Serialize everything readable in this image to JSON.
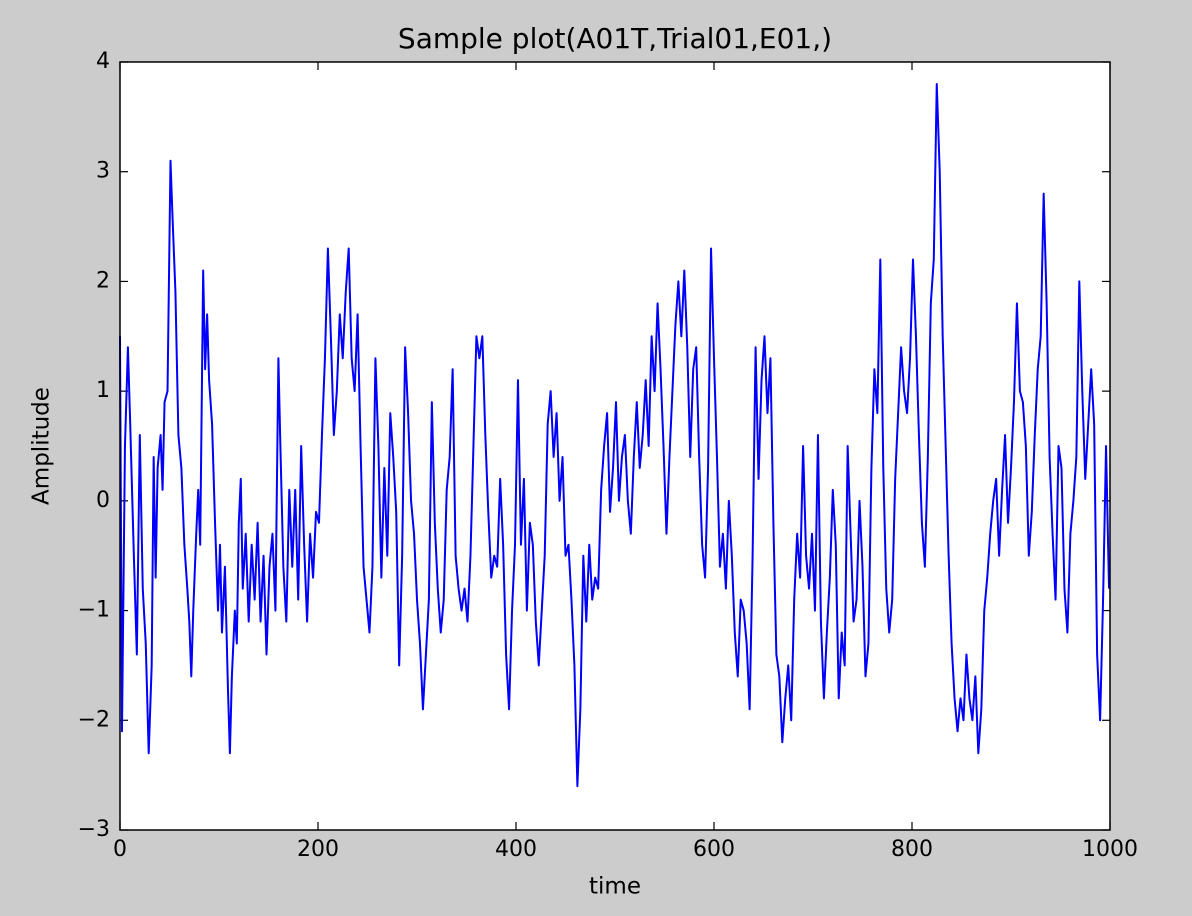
{
  "chart_data": {
    "type": "line",
    "title": "Sample plot(A01T,Trial01,E01,)",
    "x_label": "time",
    "y_label": "Amplitude",
    "xlim": [
      0,
      1000
    ],
    "ylim": [
      -3,
      4
    ],
    "xticks": [
      0,
      200,
      400,
      600,
      800,
      1000
    ],
    "yticks": [
      {
        "value": -3,
        "label": "−3"
      },
      {
        "value": -2,
        "label": "−2"
      },
      {
        "value": -1,
        "label": "−1"
      },
      0,
      1,
      2,
      3,
      4
    ],
    "grid": false,
    "x": [
      0,
      2,
      5,
      8,
      10,
      14,
      17,
      20,
      23,
      26,
      29,
      32,
      34,
      36,
      38,
      41,
      43,
      45,
      48,
      51,
      53,
      56,
      59,
      62,
      65,
      68,
      70,
      72,
      74,
      77,
      79,
      81,
      84,
      86,
      88,
      90,
      93,
      96,
      99,
      101,
      103,
      106,
      109,
      111,
      113,
      116,
      118,
      120,
      122,
      124,
      127,
      130,
      133,
      136,
      139,
      142,
      145,
      148,
      151,
      154,
      157,
      160,
      162,
      165,
      168,
      171,
      174,
      177,
      180,
      183,
      186,
      189,
      192,
      195,
      198,
      201,
      204,
      207,
      210,
      213,
      216,
      219,
      222,
      225,
      228,
      231,
      234,
      237,
      240,
      243,
      246,
      249,
      252,
      255,
      258,
      261,
      264,
      267,
      270,
      273,
      276,
      279,
      282,
      285,
      288,
      291,
      294,
      297,
      300,
      303,
      306,
      309,
      312,
      315,
      318,
      321,
      324,
      327,
      330,
      333,
      336,
      339,
      342,
      345,
      348,
      351,
      354,
      357,
      360,
      363,
      366,
      369,
      372,
      375,
      378,
      381,
      384,
      387,
      390,
      393,
      396,
      399,
      402,
      405,
      408,
      411,
      414,
      417,
      420,
      423,
      426,
      429,
      432,
      435,
      438,
      441,
      444,
      447,
      450,
      453,
      456,
      459,
      462,
      465,
      468,
      471,
      474,
      477,
      480,
      483,
      486,
      489,
      492,
      495,
      498,
      501,
      504,
      507,
      510,
      513,
      516,
      519,
      522,
      525,
      528,
      531,
      534,
      537,
      540,
      543,
      546,
      549,
      552,
      555,
      558,
      561,
      564,
      567,
      570,
      573,
      576,
      579,
      582,
      585,
      588,
      591,
      594,
      597,
      600,
      603,
      606,
      609,
      612,
      615,
      618,
      621,
      624,
      627,
      630,
      633,
      636,
      639,
      642,
      645,
      648,
      651,
      654,
      657,
      660,
      663,
      666,
      669,
      672,
      675,
      678,
      681,
      684,
      687,
      690,
      693,
      696,
      699,
      702,
      705,
      708,
      711,
      714,
      717,
      720,
      723,
      726,
      729,
      732,
      735,
      738,
      741,
      744,
      747,
      750,
      753,
      756,
      759,
      762,
      765,
      768,
      771,
      774,
      777,
      780,
      783,
      786,
      789,
      792,
      795,
      798,
      801,
      804,
      807,
      810,
      813,
      816,
      819,
      822,
      825,
      828,
      831,
      834,
      837,
      840,
      843,
      846,
      849,
      852,
      855,
      858,
      861,
      864,
      867,
      870,
      873,
      876,
      879,
      882,
      885,
      888,
      891,
      894,
      897,
      900,
      903,
      906,
      909,
      912,
      915,
      918,
      921,
      924,
      927,
      930,
      933,
      936,
      939,
      942,
      945,
      948,
      951,
      954,
      957,
      960,
      963,
      966,
      969,
      972,
      975,
      978,
      981,
      984,
      987,
      990,
      993,
      996,
      999
    ],
    "series": [
      {
        "color": "#0000ff",
        "values": [
          1.5,
          -2.1,
          0.5,
          1.4,
          0.8,
          -0.5,
          -1.4,
          0.6,
          -0.8,
          -1.3,
          -2.3,
          -1.5,
          0.4,
          -0.7,
          0.3,
          0.6,
          0.1,
          0.9,
          1.0,
          3.1,
          2.6,
          1.9,
          0.6,
          0.3,
          -0.4,
          -0.8,
          -1.1,
          -1.6,
          -1.0,
          -0.3,
          0.1,
          -0.4,
          2.1,
          1.2,
          1.7,
          1.1,
          0.7,
          -0.2,
          -1.0,
          -0.4,
          -1.2,
          -0.6,
          -1.7,
          -2.3,
          -1.6,
          -1.0,
          -1.3,
          -0.2,
          0.2,
          -0.8,
          -0.3,
          -1.1,
          -0.4,
          -0.9,
          -0.2,
          -1.1,
          -0.5,
          -1.4,
          -0.6,
          -0.3,
          -1.0,
          1.3,
          0.5,
          -0.6,
          -1.1,
          0.1,
          -0.6,
          0.1,
          -0.9,
          0.5,
          -0.4,
          -1.1,
          -0.3,
          -0.7,
          -0.1,
          -0.2,
          0.6,
          1.3,
          2.3,
          1.5,
          0.6,
          1.0,
          1.7,
          1.3,
          1.9,
          2.3,
          1.3,
          1.0,
          1.7,
          0.5,
          -0.6,
          -0.9,
          -1.2,
          -0.6,
          1.3,
          0.5,
          -0.7,
          0.3,
          -0.5,
          0.8,
          0.4,
          -0.1,
          -1.5,
          -0.5,
          1.4,
          0.8,
          0.0,
          -0.3,
          -0.9,
          -1.3,
          -1.9,
          -1.4,
          -0.9,
          0.9,
          -0.2,
          -0.8,
          -1.2,
          -0.9,
          0.1,
          0.4,
          1.2,
          -0.5,
          -0.8,
          -1.0,
          -0.8,
          -1.1,
          -0.5,
          0.5,
          1.5,
          1.3,
          1.5,
          0.6,
          -0.1,
          -0.7,
          -0.5,
          -0.6,
          0.2,
          -0.4,
          -1.4,
          -1.9,
          -1.0,
          -0.4,
          1.1,
          -0.4,
          0.2,
          -1.0,
          -0.2,
          -0.4,
          -1.1,
          -1.5,
          -1.0,
          -0.5,
          0.7,
          1.0,
          0.4,
          0.8,
          0.0,
          0.4,
          -0.5,
          -0.4,
          -0.9,
          -1.5,
          -2.6,
          -1.9,
          -0.5,
          -1.1,
          -0.4,
          -0.9,
          -0.7,
          -0.8,
          0.1,
          0.5,
          0.8,
          -0.1,
          0.3,
          0.9,
          0.0,
          0.4,
          0.6,
          0.0,
          -0.3,
          0.4,
          0.9,
          0.3,
          0.6,
          1.1,
          0.5,
          1.5,
          1.0,
          1.8,
          1.2,
          0.5,
          -0.3,
          0.4,
          1.0,
          1.6,
          2.0,
          1.5,
          2.1,
          1.4,
          0.4,
          1.2,
          1.4,
          0.4,
          -0.4,
          -0.7,
          0.3,
          2.3,
          1.3,
          0.4,
          -0.6,
          -0.3,
          -0.8,
          0.0,
          -0.5,
          -1.2,
          -1.6,
          -0.9,
          -1.0,
          -1.3,
          -1.9,
          -0.5,
          1.4,
          0.2,
          1.1,
          1.5,
          0.8,
          1.3,
          -0.2,
          -1.4,
          -1.6,
          -2.2,
          -1.8,
          -1.5,
          -2.0,
          -0.9,
          -0.3,
          -0.7,
          0.5,
          -0.5,
          -0.8,
          -0.3,
          -1.0,
          0.6,
          -1.1,
          -1.8,
          -1.2,
          -0.7,
          0.1,
          -0.4,
          -1.8,
          -1.2,
          -1.5,
          0.5,
          -0.3,
          -1.1,
          -0.9,
          0.0,
          -0.6,
          -1.6,
          -1.3,
          0.3,
          1.2,
          0.8,
          2.2,
          0.3,
          -0.8,
          -1.2,
          -0.9,
          0.2,
          0.8,
          1.4,
          1.0,
          0.8,
          1.3,
          2.2,
          1.5,
          0.6,
          -0.2,
          -0.6,
          0.4,
          1.8,
          2.2,
          3.8,
          3.0,
          1.5,
          0.5,
          -0.5,
          -1.3,
          -1.8,
          -2.1,
          -1.8,
          -2.0,
          -1.4,
          -1.8,
          -2.0,
          -1.6,
          -2.3,
          -1.9,
          -1.0,
          -0.7,
          -0.3,
          0.0,
          0.2,
          -0.5,
          0.1,
          0.6,
          -0.2,
          0.3,
          0.9,
          1.8,
          1.0,
          0.9,
          0.5,
          -0.5,
          -0.1,
          0.6,
          1.2,
          1.5,
          2.8,
          1.8,
          0.4,
          -0.3,
          -0.9,
          0.5,
          0.3,
          -0.8,
          -1.2,
          -0.3,
          0.0,
          0.4,
          2.0,
          1.0,
          0.2,
          0.7,
          1.2,
          0.7,
          -1.4,
          -2.0,
          -0.9,
          0.5,
          -0.8
        ]
      }
    ]
  }
}
